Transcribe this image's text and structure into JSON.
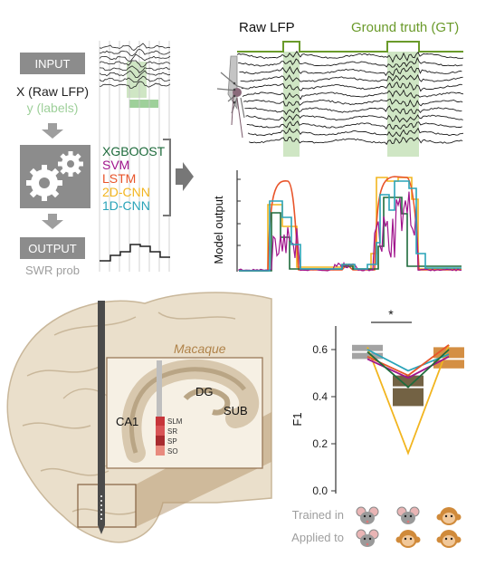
{
  "pipeline": {
    "input_label": "INPUT",
    "x_label": "X (Raw LFP)",
    "y_label": "y (labels)",
    "output_label": "OUTPUT",
    "swr_label": "SWR prob",
    "models": [
      {
        "name": "XGBOOST",
        "color": "#1e6b3c"
      },
      {
        "name": "SVM",
        "color": "#a0148c"
      },
      {
        "name": "LSTM",
        "color": "#e8542a"
      },
      {
        "name": "2D-CNN",
        "color": "#f2b51f"
      },
      {
        "name": "1D-CNN",
        "color": "#29a3b8"
      }
    ]
  },
  "lfp": {
    "raw_label": "Raw LFP",
    "gt_label": "Ground truth (GT)",
    "gt_color": "#6a9a2a"
  },
  "model_output": {
    "ylabel": "Model output"
  },
  "brain": {
    "species": "Macaque",
    "region_dg": "DG",
    "region_ca1": "CA1",
    "region_sub": "SUB",
    "layers": [
      "SLM",
      "SR",
      "SP",
      "SO"
    ]
  },
  "chart_data": {
    "type": "box",
    "ylabel": "F1",
    "ylim": [
      0.0,
      0.7
    ],
    "yticks": [
      "0.0",
      "0.2",
      "0.4",
      "0.6"
    ],
    "significance": "*",
    "row_labels": [
      "Trained in",
      "Applied to"
    ],
    "conditions": [
      {
        "trained_in": "mouse",
        "applied_to": "mouse",
        "box": [
          0.56,
          0.62
        ],
        "median": 0.59,
        "color": "#9e9e9e"
      },
      {
        "trained_in": "mouse",
        "applied_to": "macaque",
        "box": [
          0.36,
          0.49
        ],
        "median": 0.44,
        "color": "#6b5a3a"
      },
      {
        "trained_in": "macaque",
        "applied_to": "macaque",
        "box": [
          0.52,
          0.61
        ],
        "median": 0.56,
        "color": "#d2893a"
      }
    ],
    "series": [
      {
        "color": "#f2b51f",
        "values": [
          0.61,
          0.16,
          0.62
        ]
      },
      {
        "color": "#29a3b8",
        "values": [
          0.6,
          0.51,
          0.58
        ]
      },
      {
        "color": "#a0148c",
        "values": [
          0.56,
          0.48,
          0.57
        ]
      },
      {
        "color": "#e8542a",
        "values": [
          0.57,
          0.49,
          0.62
        ]
      },
      {
        "color": "#1e6b3c",
        "values": [
          0.59,
          0.44,
          0.6
        ]
      }
    ]
  }
}
